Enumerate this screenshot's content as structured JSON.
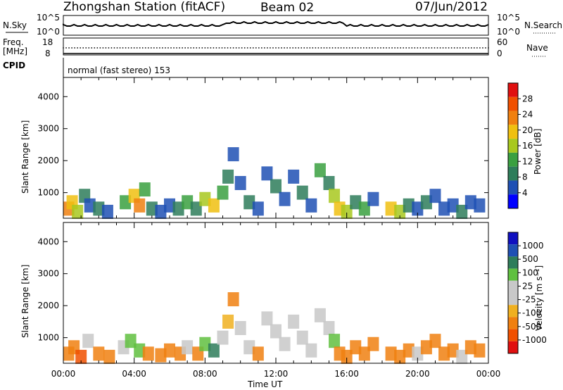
{
  "header": {
    "station": "Zhongshan Station (fitACF)",
    "beam": "Beam 02",
    "date": "07/Jun/2012"
  },
  "top_panels": {
    "nsky_label": "N.Sky",
    "nsky_ticks": [
      "10^5",
      "10^0"
    ],
    "nsearch_label": "N.Search",
    "nsearch_ticks": [
      "10^5",
      "10^0"
    ],
    "freq_label_1": "Freq.",
    "freq_label_2": "[MHz]",
    "freq_ticks": [
      "18",
      "8"
    ],
    "nave_label": "Nave",
    "nave_ticks": [
      "60",
      "0"
    ],
    "cpid_label": "CPID",
    "cpid_value": "normal (fast stereo) 153"
  },
  "colors": {
    "power_scale": [
      "#0000ff",
      "#1f50b4",
      "#2e7d5a",
      "#3aa040",
      "#a8c81e",
      "#f0c010",
      "#f08010",
      "#f05000",
      "#e01010"
    ],
    "velocity_scale": [
      "#e01010",
      "#f05000",
      "#f08010",
      "#f0b020",
      "#c8c8c8",
      "#c8c8c8",
      "#60c040",
      "#2e7d5a",
      "#1f50b4",
      "#1010c0"
    ]
  },
  "chart_data": [
    {
      "type": "heatmap",
      "name": "power-panel",
      "ylabel": "Slant Range [km]",
      "yticks": [
        1000,
        2000,
        3000,
        4000
      ],
      "ylim": [
        200,
        4600
      ],
      "xlim": [
        0,
        24
      ],
      "colorbar_label": "Power [dB]",
      "colorbar_ticks": [
        "4",
        "8",
        "12",
        "16",
        "20",
        "24",
        "28"
      ],
      "cells": [
        [
          0.3,
          500,
          28
        ],
        [
          0.5,
          700,
          24
        ],
        [
          0.8,
          400,
          20
        ],
        [
          1.2,
          900,
          12
        ],
        [
          1.5,
          600,
          8
        ],
        [
          2.0,
          500,
          12
        ],
        [
          2.5,
          400,
          8
        ],
        [
          3.5,
          700,
          16
        ],
        [
          4.0,
          900,
          24
        ],
        [
          4.3,
          600,
          28
        ],
        [
          4.6,
          1100,
          16
        ],
        [
          5.0,
          500,
          12
        ],
        [
          5.5,
          400,
          8
        ],
        [
          6.0,
          600,
          8
        ],
        [
          6.5,
          500,
          12
        ],
        [
          7.0,
          700,
          16
        ],
        [
          7.5,
          500,
          12
        ],
        [
          8.0,
          800,
          20
        ],
        [
          8.5,
          600,
          24
        ],
        [
          9.0,
          1000,
          16
        ],
        [
          9.3,
          1500,
          12
        ],
        [
          9.6,
          2200,
          8
        ],
        [
          10.0,
          1300,
          8
        ],
        [
          10.5,
          700,
          12
        ],
        [
          11.0,
          500,
          8
        ],
        [
          11.5,
          1600,
          8
        ],
        [
          12.0,
          1200,
          12
        ],
        [
          12.5,
          800,
          8
        ],
        [
          13.0,
          1500,
          8
        ],
        [
          13.5,
          1000,
          12
        ],
        [
          14.0,
          600,
          8
        ],
        [
          14.5,
          1700,
          16
        ],
        [
          15.0,
          1300,
          12
        ],
        [
          15.3,
          900,
          20
        ],
        [
          15.6,
          500,
          24
        ],
        [
          16.0,
          400,
          20
        ],
        [
          16.5,
          700,
          12
        ],
        [
          17.0,
          500,
          16
        ],
        [
          17.5,
          800,
          8
        ],
        [
          18.5,
          500,
          24
        ],
        [
          19.0,
          400,
          20
        ],
        [
          19.5,
          600,
          12
        ],
        [
          20.0,
          500,
          8
        ],
        [
          20.5,
          700,
          12
        ],
        [
          21.0,
          900,
          8
        ],
        [
          21.5,
          500,
          8
        ],
        [
          22.0,
          600,
          8
        ],
        [
          22.5,
          400,
          12
        ],
        [
          23.0,
          700,
          8
        ],
        [
          23.5,
          600,
          8
        ]
      ]
    },
    {
      "type": "heatmap",
      "name": "velocity-panel",
      "ylabel": "Slant Range [km]",
      "yticks": [
        1000,
        2000,
        3000,
        4000
      ],
      "ylim": [
        200,
        4600
      ],
      "xlim": [
        0,
        24
      ],
      "xticks": [
        "00:00",
        "04:00",
        "08:00",
        "12:00",
        "16:00",
        "20:00",
        "00:00"
      ],
      "xlabel": "Time UT",
      "colorbar_label": "Velocity [m s⁻¹]",
      "colorbar_ticks": [
        "-1000",
        "-500",
        "-100",
        "-25",
        "25",
        "100",
        "500",
        "1000"
      ],
      "cells": [
        [
          0.3,
          500,
          -100
        ],
        [
          0.6,
          700,
          -100
        ],
        [
          1.0,
          400,
          -500
        ],
        [
          1.4,
          900,
          100
        ],
        [
          2.0,
          500,
          -100
        ],
        [
          2.6,
          400,
          -100
        ],
        [
          3.4,
          700,
          100
        ],
        [
          3.8,
          900,
          500
        ],
        [
          4.3,
          600,
          500
        ],
        [
          4.8,
          500,
          -100
        ],
        [
          5.5,
          450,
          -100
        ],
        [
          6.0,
          600,
          -100
        ],
        [
          6.6,
          500,
          -100
        ],
        [
          7.0,
          700,
          100
        ],
        [
          7.6,
          500,
          -100
        ],
        [
          8.0,
          800,
          500
        ],
        [
          8.5,
          600,
          1000
        ],
        [
          9.0,
          1000,
          100
        ],
        [
          9.3,
          1500,
          -25
        ],
        [
          9.6,
          2200,
          -100
        ],
        [
          10.0,
          1300,
          25
        ],
        [
          10.5,
          700,
          100
        ],
        [
          11.0,
          500,
          -100
        ],
        [
          11.5,
          1600,
          25
        ],
        [
          12.0,
          1200,
          25
        ],
        [
          12.5,
          800,
          100
        ],
        [
          13.0,
          1500,
          25
        ],
        [
          13.5,
          1000,
          25
        ],
        [
          14.0,
          600,
          100
        ],
        [
          14.5,
          1700,
          25
        ],
        [
          15.0,
          1300,
          25
        ],
        [
          15.3,
          900,
          500
        ],
        [
          15.6,
          500,
          -100
        ],
        [
          16.0,
          400,
          -100
        ],
        [
          16.5,
          700,
          -100
        ],
        [
          17.0,
          500,
          -100
        ],
        [
          17.5,
          800,
          -100
        ],
        [
          18.5,
          500,
          -100
        ],
        [
          19.0,
          400,
          -100
        ],
        [
          19.5,
          600,
          -100
        ],
        [
          20.0,
          500,
          100
        ],
        [
          20.5,
          700,
          -100
        ],
        [
          21.0,
          900,
          -100
        ],
        [
          21.5,
          500,
          -100
        ],
        [
          22.0,
          600,
          -100
        ],
        [
          22.5,
          400,
          100
        ],
        [
          23.0,
          700,
          -100
        ],
        [
          23.5,
          600,
          -100
        ]
      ]
    }
  ]
}
